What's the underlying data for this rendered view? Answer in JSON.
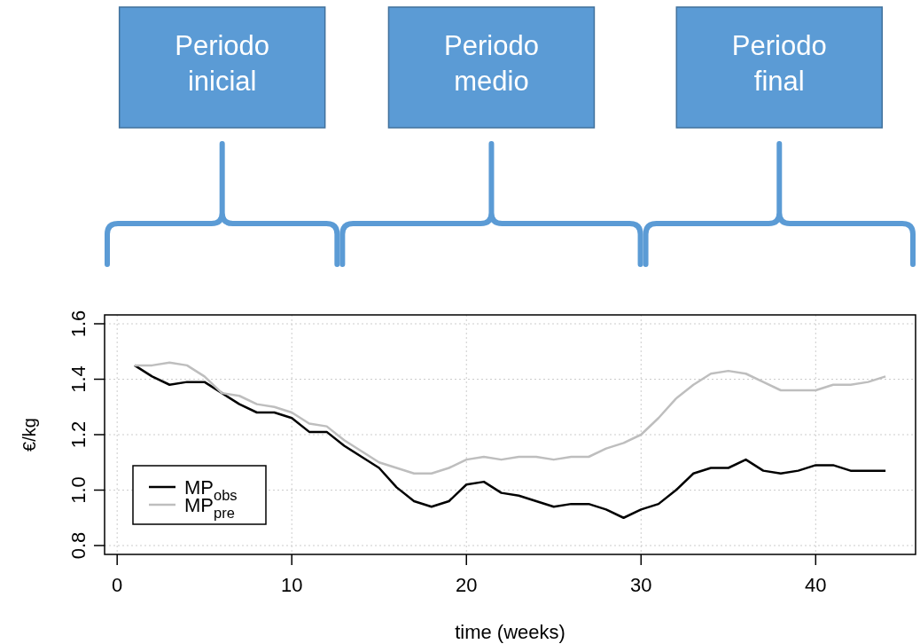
{
  "chart_data": {
    "type": "line",
    "xlabel": "time (weeks)",
    "ylabel": "€/kg",
    "x": [
      1,
      2,
      3,
      4,
      5,
      6,
      7,
      8,
      9,
      10,
      11,
      12,
      13,
      14,
      15,
      16,
      17,
      18,
      19,
      20,
      21,
      22,
      23,
      24,
      25,
      26,
      27,
      28,
      29,
      30,
      31,
      32,
      33,
      34,
      35,
      36,
      37,
      38,
      39,
      40,
      41,
      42,
      43,
      44
    ],
    "series": [
      {
        "name": "MP$_{obs}$",
        "color": "#000000",
        "values": [
          1.45,
          1.41,
          1.38,
          1.39,
          1.39,
          1.35,
          1.31,
          1.28,
          1.28,
          1.26,
          1.21,
          1.21,
          1.16,
          1.12,
          1.08,
          1.01,
          0.96,
          0.94,
          0.96,
          1.02,
          1.03,
          0.99,
          0.98,
          0.96,
          0.94,
          0.95,
          0.95,
          0.93,
          0.9,
          0.93,
          0.95,
          1.0,
          1.06,
          1.08,
          1.08,
          1.11,
          1.07,
          1.06,
          1.07,
          1.09,
          1.09,
          1.07,
          1.07,
          1.07
        ]
      },
      {
        "name": "MP$_{pre}$",
        "color": "#bebebe",
        "values": [
          1.45,
          1.45,
          1.46,
          1.45,
          1.41,
          1.35,
          1.34,
          1.31,
          1.3,
          1.28,
          1.24,
          1.23,
          1.18,
          1.14,
          1.1,
          1.08,
          1.06,
          1.06,
          1.08,
          1.11,
          1.12,
          1.11,
          1.12,
          1.12,
          1.11,
          1.12,
          1.12,
          1.15,
          1.17,
          1.2,
          1.26,
          1.33,
          1.38,
          1.42,
          1.43,
          1.42,
          1.39,
          1.36,
          1.36,
          1.36,
          1.38,
          1.38,
          1.39,
          1.41
        ]
      }
    ],
    "xlim": [
      -0.72,
      45.72
    ],
    "xticks": [
      0,
      10,
      20,
      30,
      40
    ],
    "ylim": [
      0.768,
      1.632
    ],
    "yticks": [
      {
        "value": 0.8,
        "label": "0.8"
      },
      {
        "value": 1.0,
        "label": "1.0"
      },
      {
        "value": 1.2,
        "label": "1.2"
      },
      {
        "value": 1.4,
        "label": "1.4"
      },
      {
        "value": 1.6,
        "label": "1.6"
      }
    ],
    "grid": true,
    "legend": "bottom left",
    "line_style": "solid",
    "annotations": [
      "Periodo inicial",
      "Periodo medio",
      "Periodo final"
    ]
  }
}
